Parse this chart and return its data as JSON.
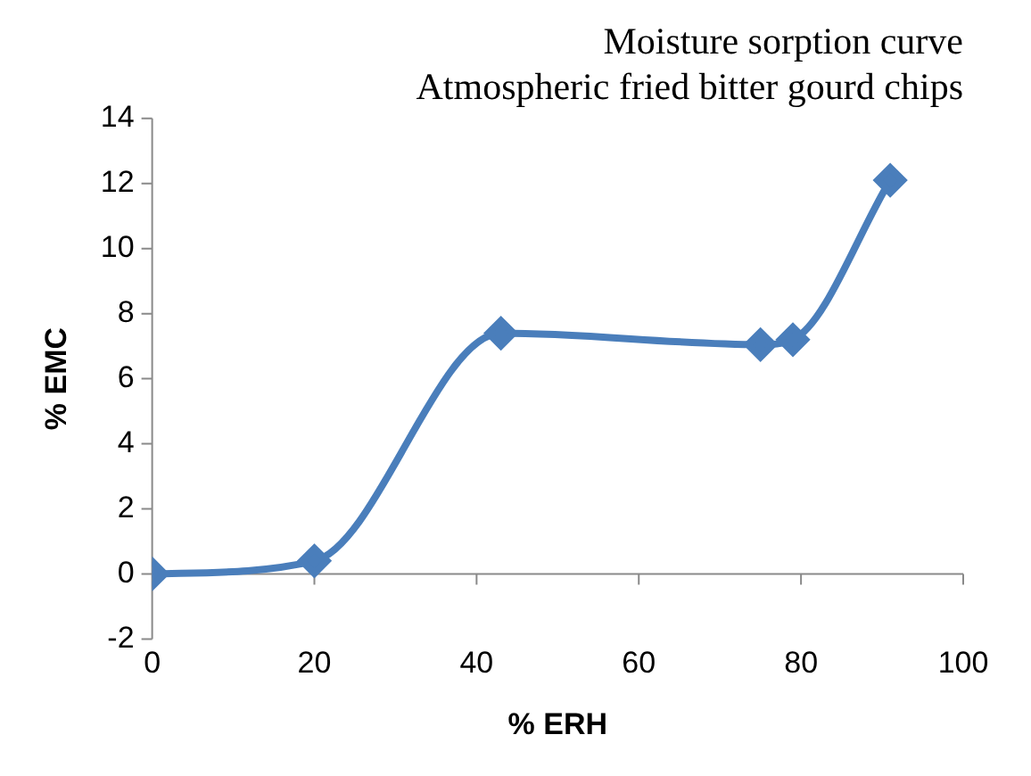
{
  "chart_data": {
    "type": "line",
    "title": "Moisture sorption curve\nAtmospheric fried bitter gourd chips",
    "xlabel": "% ERH",
    "ylabel": "% EMC",
    "x": [
      0,
      20,
      43,
      75,
      79,
      91
    ],
    "series": [
      {
        "color": "#4a7ebb",
        "values": [
          0,
          0.4,
          7.4,
          7.05,
          7.2,
          12.1
        ]
      }
    ],
    "xlim": [
      0,
      100
    ],
    "xticks": [
      0,
      20,
      40,
      60,
      80,
      100
    ],
    "ylim": [
      -2,
      14
    ],
    "yticks": [
      -2,
      0,
      2,
      4,
      6,
      8,
      10,
      12,
      14
    ],
    "grid": false,
    "legend": false,
    "marker": "diamond",
    "line_style": "solid"
  }
}
